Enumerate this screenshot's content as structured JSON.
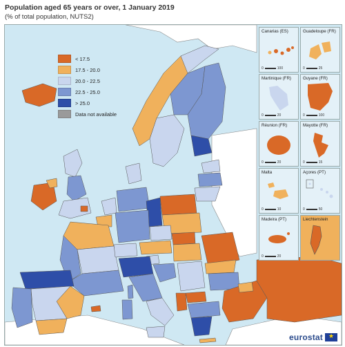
{
  "title": "Population aged 65 years or over, 1 January 2019",
  "subtitle": "(% of total population, NUTS2)",
  "legend": [
    {
      "label": "< 17.5",
      "color": "#d96927"
    },
    {
      "label": "17.5 - 20.0",
      "color": "#f0b15c"
    },
    {
      "label": "20.0 - 22.5",
      "color": "#c9d6ee"
    },
    {
      "label": "22.5 - 25.0",
      "color": "#7d97d1"
    },
    {
      "label": "> 25.0",
      "color": "#2e4ea8"
    },
    {
      "label": "Data not available",
      "color": "#9a9a9a"
    }
  ],
  "insets": [
    {
      "title": "Canarias (ES)",
      "scale": [
        "0",
        "100"
      ]
    },
    {
      "title": "Guadeloupe (FR)",
      "scale": [
        "0",
        "25"
      ]
    },
    {
      "title": "Martinique (FR)",
      "scale": [
        "0",
        "20"
      ]
    },
    {
      "title": "Guyane (FR)",
      "scale": [
        "0",
        "100"
      ]
    },
    {
      "title": "Réunion (FR)",
      "scale": [
        "0",
        "20"
      ]
    },
    {
      "title": "Mayotte (FR)",
      "scale": [
        "0",
        "15"
      ]
    },
    {
      "title": "Malta",
      "scale": [
        "0",
        "10"
      ]
    },
    {
      "title": "Açores (PT)",
      "scale": [
        "0",
        "50"
      ]
    },
    {
      "title": "Madeira (PT)",
      "scale": [
        "0",
        "20"
      ]
    },
    {
      "title": "Liechtenstein",
      "scale": []
    }
  ],
  "logo": {
    "text": "eurostat"
  },
  "colors": {
    "sea": "#cfe8f3",
    "non_eu_land": "#ffffff",
    "border": "#333333"
  }
}
